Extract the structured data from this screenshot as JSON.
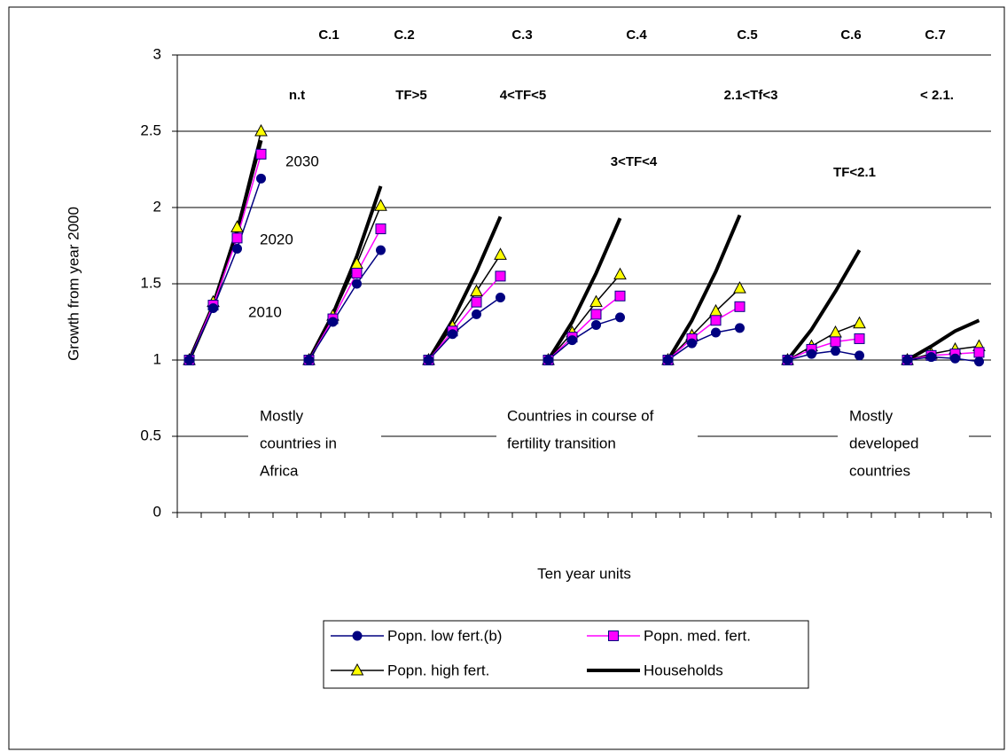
{
  "chart_data": {
    "type": "line",
    "y_label": "Growth from year 2000",
    "x_label": "Ten year units",
    "categories": [
      null,
      null,
      null,
      null,
      null,
      null,
      null,
      null,
      null,
      null,
      null,
      null,
      null,
      null,
      null,
      null,
      null,
      null,
      null,
      null,
      null,
      null,
      null,
      null,
      null,
      null,
      null,
      null,
      null,
      null,
      null,
      null,
      null,
      null
    ],
    "ylim": [
      0,
      3
    ],
    "yticks": [
      0,
      0.5,
      1,
      1.5,
      2,
      2.5,
      3
    ],
    "grid": true,
    "legend": "bottom",
    "series": [
      {
        "name": "Popn. low fert.(b)",
        "color": "#000080",
        "marker": "circle",
        "values": [
          1,
          1.34,
          1.73,
          2.19,
          null,
          1,
          1.25,
          1.5,
          1.72,
          null,
          1,
          1.17,
          1.3,
          1.41,
          null,
          1,
          1.13,
          1.23,
          1.28,
          null,
          1,
          1.11,
          1.18,
          1.21,
          null,
          1,
          1.04,
          1.06,
          1.03,
          null,
          1,
          1.02,
          1.01,
          0.99
        ]
      },
      {
        "name": "Popn. med. fert.",
        "color": "#ff00ff",
        "marker": "square",
        "values": [
          1,
          1.36,
          1.8,
          2.35,
          null,
          1,
          1.27,
          1.57,
          1.86,
          null,
          1,
          1.19,
          1.38,
          1.55,
          null,
          1,
          1.15,
          1.3,
          1.42,
          null,
          1,
          1.14,
          1.26,
          1.35,
          null,
          1,
          1.07,
          1.12,
          1.14,
          null,
          1,
          1.03,
          1.04,
          1.05
        ]
      },
      {
        "name": "Popn. high fert.",
        "color": "#000000",
        "marker": "triangle",
        "values": [
          1,
          1.38,
          1.87,
          2.5,
          null,
          1,
          1.29,
          1.63,
          2.01,
          null,
          1,
          1.22,
          1.45,
          1.69,
          null,
          1,
          1.18,
          1.38,
          1.56,
          null,
          1,
          1.16,
          1.32,
          1.47,
          null,
          1,
          1.09,
          1.18,
          1.24,
          null,
          1,
          1.04,
          1.07,
          1.09
        ]
      },
      {
        "name": "Households",
        "color": "#000000",
        "marker": "none",
        "values": [
          1,
          1.36,
          1.85,
          2.44,
          null,
          1,
          1.3,
          1.68,
          2.14,
          null,
          1,
          1.26,
          1.58,
          1.94,
          null,
          1,
          1.25,
          1.57,
          1.93,
          null,
          1,
          1.26,
          1.58,
          1.95,
          null,
          1,
          1.2,
          1.45,
          1.72,
          null,
          1,
          1.09,
          1.19,
          1.26
        ]
      }
    ],
    "group_labels": [
      "C.1",
      "C.2",
      "C.3",
      "C.4",
      "C.5",
      "C.6",
      "C.7"
    ],
    "group_subtitles": [
      "n.t",
      "TF>5",
      "4<TF<5",
      "3<TF<4",
      "2.1<Tf<3",
      "TF<2.1",
      "< 2.1."
    ],
    "year_labels": [
      "2030",
      "2020",
      "2010"
    ],
    "region_labels": [
      [
        "Mostly",
        "countries in",
        "Africa"
      ],
      [
        "Countries in course of",
        "fertility transition"
      ],
      [
        "Mostly",
        "developed",
        "countries"
      ]
    ]
  }
}
